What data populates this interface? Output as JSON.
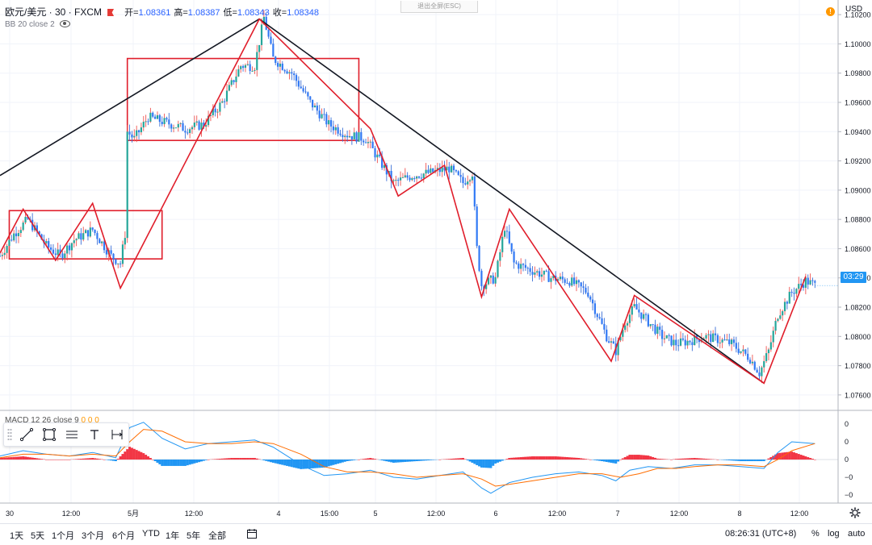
{
  "header": {
    "symbol": "欧元/美元 · 30 · FXCM",
    "ohlc": [
      {
        "k": "开=",
        "v": "1.08361"
      },
      {
        "k": "高=",
        "v": "1.08387"
      },
      {
        "k": "低=",
        "v": "1.08343"
      },
      {
        "k": "收=",
        "v": "1.08348"
      }
    ],
    "indicator": "BB 20 close 2",
    "exit_fullscreen": "退出全屏(ESC)",
    "currency": "USD",
    "warning_glyph": "!",
    "countdown": "03:29"
  },
  "macd_legend": {
    "label": "MACD 12 26 close 9",
    "values": [
      "0",
      "0",
      "0"
    ]
  },
  "bottom_bar": {
    "timeframes": [
      "1天",
      "5天",
      "1个月",
      "3个月",
      "6个月",
      "YTD",
      "1年",
      "5年",
      "全部"
    ],
    "clock": "08:26:31 (UTC+8)",
    "percent": "%",
    "log": "log",
    "auto": "auto"
  },
  "chart_data": [
    {
      "type": "candlestick",
      "title": "欧元/美元 · 30 · FXCM",
      "y_ticks": [
        "1.10200",
        "1.10000",
        "1.09800",
        "1.09600",
        "1.09400",
        "1.09200",
        "1.09000",
        "1.08800",
        "1.08600",
        "1.08400",
        "1.08200",
        "1.08000",
        "1.07800",
        "1.07600"
      ],
      "ylim": [
        1.075,
        1.103
      ],
      "x_tick_labels": [
        "30",
        "12:00",
        "5月",
        "12:00",
        "4",
        "15:00",
        "5",
        "12:00",
        "6",
        "12:00",
        "7",
        "12:00",
        "8",
        "12:00"
      ],
      "last_price": 1.08348,
      "price_path": [
        [
          0,
          1.0855
        ],
        [
          6,
          1.087
        ],
        [
          12,
          1.088
        ],
        [
          20,
          1.0862
        ],
        [
          26,
          1.0855
        ],
        [
          32,
          1.0866
        ],
        [
          40,
          1.0873
        ],
        [
          48,
          1.0855
        ],
        [
          52,
          1.085
        ],
        [
          54,
          1.087
        ],
        [
          55,
          1.094
        ],
        [
          58,
          1.0935
        ],
        [
          64,
          1.095
        ],
        [
          72,
          1.0946
        ],
        [
          80,
          1.0942
        ],
        [
          88,
          1.0945
        ],
        [
          96,
          1.096
        ],
        [
          104,
          1.0985
        ],
        [
          110,
          1.0985
        ],
        [
          114,
          1.1018
        ],
        [
          118,
          1.099
        ],
        [
          126,
          1.098
        ],
        [
          134,
          1.096
        ],
        [
          142,
          1.0945
        ],
        [
          150,
          1.0938
        ],
        [
          158,
          1.0935
        ],
        [
          164,
          1.092
        ],
        [
          170,
          1.0905
        ],
        [
          178,
          1.091
        ],
        [
          186,
          1.0912
        ],
        [
          194,
          1.0915
        ],
        [
          200,
          1.0905
        ],
        [
          204,
          1.0912
        ],
        [
          206,
          1.086
        ],
        [
          208,
          1.0835
        ],
        [
          214,
          1.084
        ],
        [
          218,
          1.0875
        ],
        [
          222,
          1.085
        ],
        [
          230,
          1.0845
        ],
        [
          238,
          1.084
        ],
        [
          246,
          1.0838
        ],
        [
          254,
          1.083
        ],
        [
          262,
          1.08
        ],
        [
          266,
          1.079
        ],
        [
          270,
          1.081
        ],
        [
          274,
          1.082
        ],
        [
          280,
          1.081
        ],
        [
          286,
          1.08
        ],
        [
          292,
          1.0795
        ],
        [
          298,
          1.0797
        ],
        [
          304,
          1.08
        ],
        [
          310,
          1.0798
        ],
        [
          316,
          1.0795
        ],
        [
          320,
          1.079
        ],
        [
          324,
          1.0785
        ],
        [
          328,
          1.0775
        ],
        [
          332,
          1.079
        ],
        [
          336,
          1.0815
        ],
        [
          342,
          1.083
        ],
        [
          348,
          1.0838
        ],
        [
          352,
          1.0835
        ]
      ],
      "trendlines_black": [
        {
          "from": [
            0,
            1.091
          ],
          "to": [
            112,
            1.1017
          ]
        },
        {
          "from": [
            112,
            1.1017
          ],
          "to": [
            330,
            1.0768
          ]
        }
      ],
      "zigzag_red": [
        [
          0,
          1.0857
        ],
        [
          10,
          1.0887
        ],
        [
          24,
          1.0852
        ],
        [
          40,
          1.0891
        ],
        [
          52,
          1.0833
        ],
        [
          112,
          1.1017
        ],
        [
          160,
          1.0942
        ],
        [
          172,
          1.0896
        ],
        [
          192,
          1.0917
        ],
        [
          208,
          1.0827
        ],
        [
          220,
          1.0887
        ],
        [
          264,
          1.0783
        ],
        [
          274,
          1.0828
        ],
        [
          330,
          1.0768
        ],
        [
          348,
          1.0841
        ]
      ],
      "boxes_red": [
        {
          "x": [
            4,
            70
          ],
          "y": [
            1.0853,
            1.0886
          ]
        },
        {
          "x": [
            55,
            155
          ],
          "y": [
            1.0934,
            1.099
          ]
        }
      ],
      "candle_colors": {
        "up": "#26a69a",
        "down": "#3179f5",
        "wick_up": "#ef5350"
      }
    },
    {
      "type": "macd",
      "label": "MACD 12 26 close 9",
      "y_ticks": [
        "0",
        "0",
        "0",
        "−0",
        "−0"
      ],
      "colors": {
        "macd": "#2196f3",
        "signal": "#ff6d00",
        "hist_pos": "#f23645",
        "hist_neg": "#2196f3"
      },
      "macd_line": [
        [
          0,
          0.2
        ],
        [
          10,
          0.5
        ],
        [
          20,
          0.3
        ],
        [
          30,
          0.2
        ],
        [
          40,
          0.4
        ],
        [
          50,
          0.1
        ],
        [
          56,
          1.8
        ],
        [
          62,
          2.1
        ],
        [
          70,
          1.2
        ],
        [
          80,
          0.6
        ],
        [
          90,
          0.9
        ],
        [
          100,
          1.0
        ],
        [
          110,
          1.1
        ],
        [
          118,
          0.7
        ],
        [
          130,
          -0.3
        ],
        [
          140,
          -0.9
        ],
        [
          150,
          -0.8
        ],
        [
          160,
          -0.6
        ],
        [
          170,
          -1.0
        ],
        [
          180,
          -1.1
        ],
        [
          190,
          -0.9
        ],
        [
          200,
          -0.7
        ],
        [
          208,
          -1.6
        ],
        [
          212,
          -1.9
        ],
        [
          220,
          -1.3
        ],
        [
          230,
          -1.0
        ],
        [
          240,
          -0.8
        ],
        [
          250,
          -0.7
        ],
        [
          260,
          -0.9
        ],
        [
          266,
          -1.2
        ],
        [
          272,
          -0.6
        ],
        [
          280,
          -0.4
        ],
        [
          290,
          -0.5
        ],
        [
          300,
          -0.3
        ],
        [
          310,
          -0.3
        ],
        [
          320,
          -0.4
        ],
        [
          330,
          -0.5
        ],
        [
          336,
          0.4
        ],
        [
          342,
          1.0
        ],
        [
          352,
          0.9
        ]
      ],
      "signal_line": [
        [
          0,
          0.1
        ],
        [
          10,
          0.3
        ],
        [
          20,
          0.3
        ],
        [
          30,
          0.2
        ],
        [
          40,
          0.3
        ],
        [
          50,
          0.2
        ],
        [
          56,
          1.0
        ],
        [
          62,
          1.7
        ],
        [
          70,
          1.6
        ],
        [
          80,
          1.0
        ],
        [
          90,
          0.9
        ],
        [
          100,
          0.9
        ],
        [
          110,
          1.0
        ],
        [
          118,
          0.9
        ],
        [
          130,
          0.3
        ],
        [
          140,
          -0.4
        ],
        [
          150,
          -0.7
        ],
        [
          160,
          -0.7
        ],
        [
          170,
          -0.8
        ],
        [
          180,
          -1.0
        ],
        [
          190,
          -0.9
        ],
        [
          200,
          -0.8
        ],
        [
          208,
          -1.1
        ],
        [
          214,
          -1.5
        ],
        [
          220,
          -1.4
        ],
        [
          230,
          -1.2
        ],
        [
          240,
          -1.0
        ],
        [
          250,
          -0.8
        ],
        [
          260,
          -0.8
        ],
        [
          268,
          -1.0
        ],
        [
          276,
          -0.8
        ],
        [
          284,
          -0.5
        ],
        [
          292,
          -0.5
        ],
        [
          300,
          -0.4
        ],
        [
          310,
          -0.3
        ],
        [
          320,
          -0.3
        ],
        [
          330,
          -0.4
        ],
        [
          336,
          0.0
        ],
        [
          342,
          0.5
        ],
        [
          352,
          0.9
        ]
      ]
    }
  ]
}
